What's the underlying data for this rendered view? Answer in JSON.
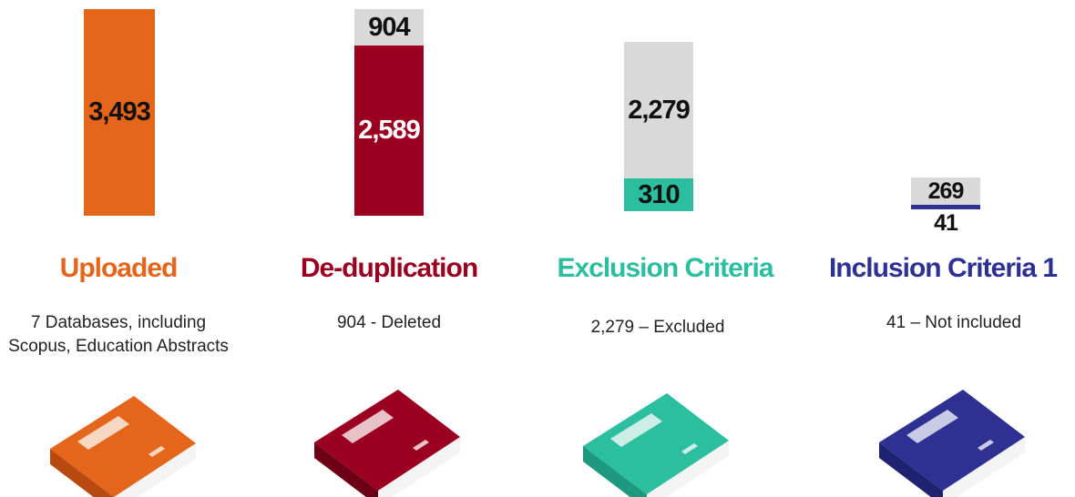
{
  "stages": [
    {
      "title": "Uploaded",
      "description": "7 Databases, including Scopus, Education Abstracts",
      "counts": [
        "3,493"
      ]
    },
    {
      "title": "De-duplication",
      "description": "904 - Deleted",
      "counts": [
        "904",
        "2,589"
      ]
    },
    {
      "title": "Exclusion Criteria",
      "description": "2,279 – Excluded",
      "counts": [
        "2,279",
        "310"
      ]
    },
    {
      "title": "Inclusion Criteria 1",
      "description": "41 – Not included",
      "counts": [
        "269",
        "41"
      ]
    }
  ]
}
